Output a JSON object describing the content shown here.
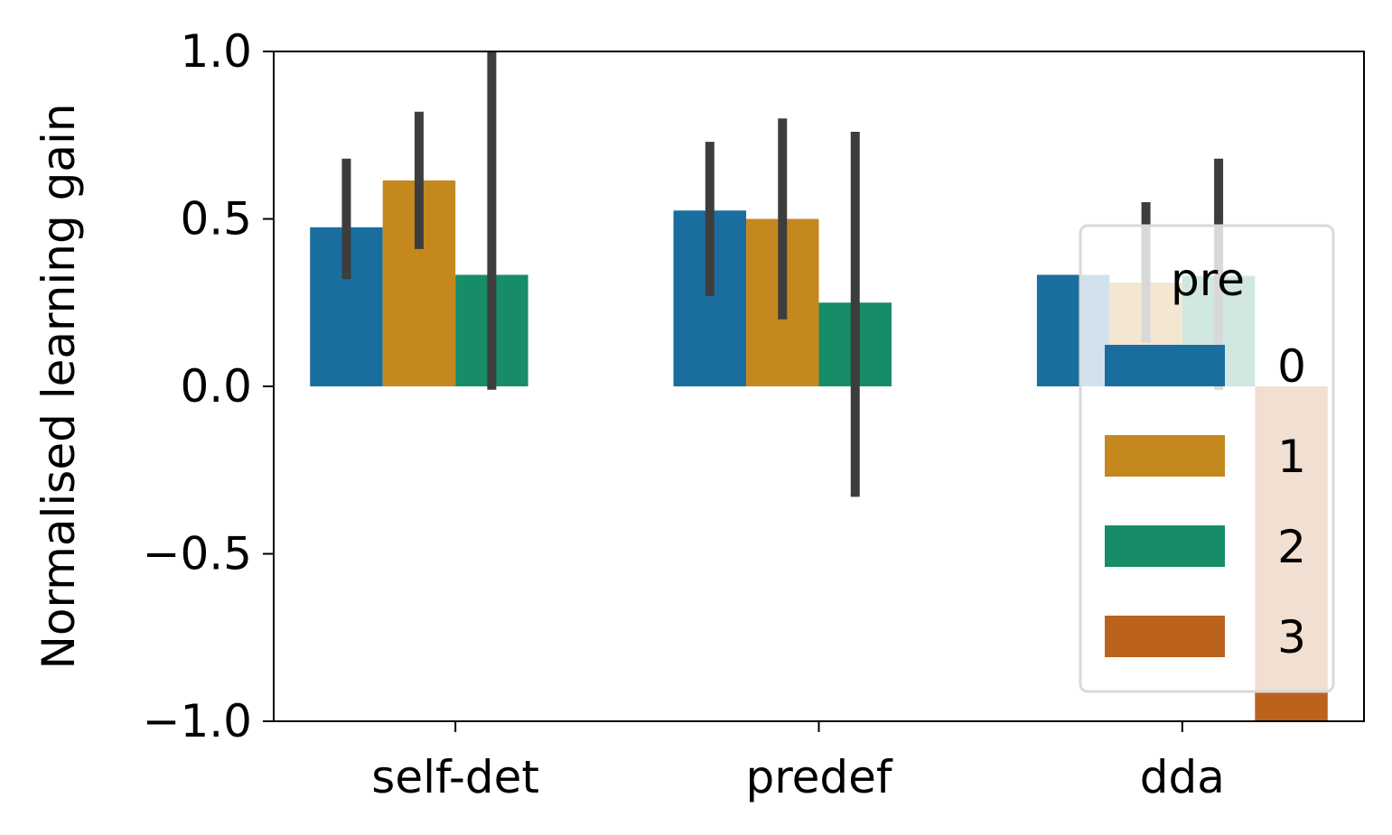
{
  "chart_data": {
    "type": "bar",
    "categories": [
      "self-det",
      "predef",
      "dda"
    ],
    "ylabel": "Normalised learning gain",
    "xlabel": "",
    "ylim": [
      -1.0,
      1.0
    ],
    "yticks": [
      1.0,
      0.5,
      0.0,
      -0.5,
      -1.0
    ],
    "ytick_labels": [
      "1.0",
      "0.5",
      "0.0",
      "−0.5",
      "−1.0"
    ],
    "grid": false,
    "legend": {
      "title": "pre",
      "placement": "lower-right"
    },
    "series": [
      {
        "name": "0",
        "color": "#1a6e9f",
        "values": [
          0.475,
          0.525,
          0.333
        ],
        "err_low": [
          0.32,
          0.27,
          null
        ],
        "err_high": [
          0.68,
          0.73,
          null
        ]
      },
      {
        "name": "1",
        "color": "#c4881f",
        "values": [
          0.615,
          0.5,
          0.31
        ],
        "err_low": [
          0.41,
          0.2,
          0.13
        ],
        "err_high": [
          0.82,
          0.8,
          0.55
        ]
      },
      {
        "name": "2",
        "color": "#168d68",
        "values": [
          0.333,
          0.25,
          0.33
        ],
        "err_low": [
          -0.01,
          -0.33,
          -0.01
        ],
        "err_high": [
          1.0,
          0.76,
          0.68
        ]
      },
      {
        "name": "3",
        "color": "#bb621d",
        "values": [
          null,
          null,
          -1.0
        ],
        "err_low": [
          null,
          null,
          null
        ],
        "err_high": [
          null,
          null,
          null
        ]
      }
    ]
  }
}
